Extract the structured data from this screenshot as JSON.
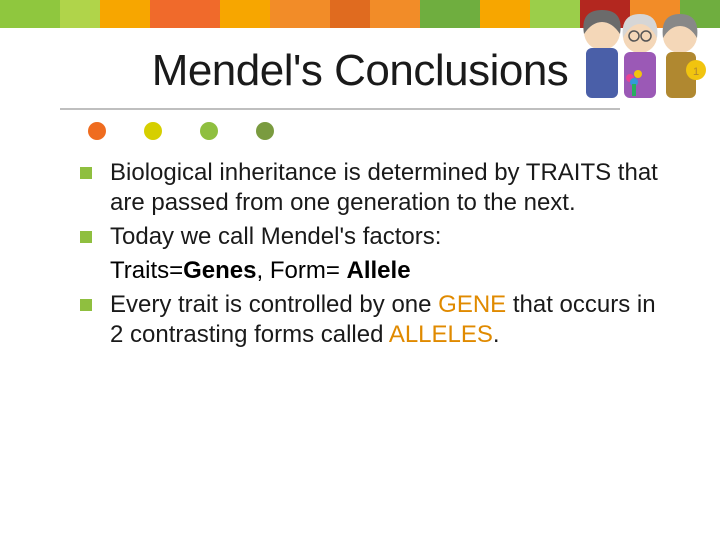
{
  "slide": {
    "title": "Mendel's Conclusions",
    "top_stripe_colors": [
      "#8fc73e",
      "#b0d44a",
      "#f7a600",
      "#f06a2b",
      "#f7a600",
      "#f28c28",
      "#e06b1f",
      "#f28c28",
      "#6fae3f",
      "#f7a600",
      "#9bce4a",
      "#b3271f",
      "#f28c28",
      "#6fae3f"
    ],
    "top_stripe_widths": [
      60,
      40,
      50,
      70,
      50,
      60,
      40,
      50,
      60,
      50,
      50,
      50,
      50,
      40
    ],
    "accent_dots": [
      "#ef6c1f",
      "#d6cf00",
      "#8fbf3f",
      "#7a9b3f"
    ],
    "bullet_color": "#8fbf3f",
    "highlight_color": "#e08a00",
    "bullets": [
      {
        "pre": "Biological inheritance is determined by ",
        "kw": "TRAITS",
        "kw_class": "kw-traits",
        "bold_kw": false,
        "post": "  that are passed from one generation to the next."
      },
      {
        "pre": "Today we call Mendel's factors:",
        "kw": "",
        "post": "",
        "sub": " Traits=<b>Genes</b>, Form= <b>Allele</b>"
      },
      {
        "pre": "Every trait is controlled by one ",
        "kw": "GENE",
        "kw_class": "kw-gene",
        "bold_kw": false,
        "post": " that occurs in 2 contrasting forms called ",
        "kw2": "ALLELES",
        "kw2_class": "kw-alleles",
        "post2": "."
      }
    ]
  }
}
